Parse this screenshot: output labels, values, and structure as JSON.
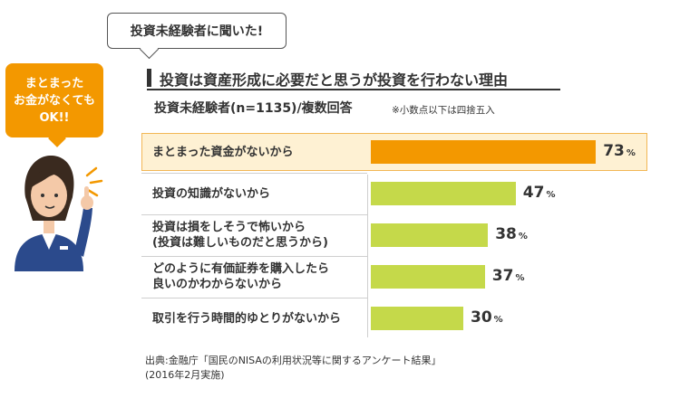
{
  "speech_top": "投資未経験者に聞いた!",
  "bubble_left": [
    "まとまった",
    "お金がなくても",
    "OK!!"
  ],
  "colors": {
    "highlight_bar": "#f39800",
    "bar": "#c5d94a",
    "highlight_bg": "#fef1d3",
    "accent": "#f39800"
  },
  "chart_data": {
    "type": "bar",
    "orientation": "horizontal",
    "title": "投資は資産形成に必要だと思うが投資を行わない理由",
    "subtitle": "投資未経験者(n=1135)/複数回答",
    "note": "※小数点以下は四捨五入",
    "categories": [
      [
        "まとまった資金がないから"
      ],
      [
        "投資の知識がないから"
      ],
      [
        "投資は損をしそうで怖いから",
        "(投資は難しいものだと思うから)"
      ],
      [
        "どのように有価証券を購入したら",
        "良いのかわからないから"
      ],
      [
        "取引を行う時間的ゆとりがないから"
      ]
    ],
    "values": [
      73,
      47,
      38,
      37,
      30
    ],
    "unit": "%",
    "highlight_index": 0
  },
  "source": [
    "出典:金融庁「国民のNISAの利用状況等に関するアンケート結果」",
    "(2016年2月実施)"
  ]
}
